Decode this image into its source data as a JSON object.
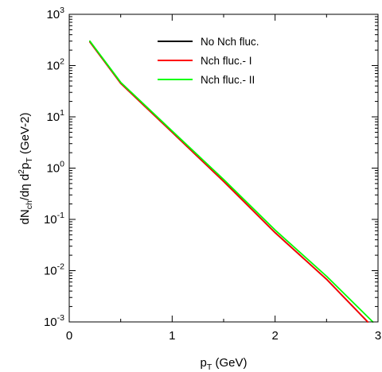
{
  "chart_data": {
    "type": "line",
    "title": "",
    "xlabel": {
      "main": "p",
      "sub": "T",
      "rest": " (GeV)"
    },
    "ylabel": {
      "p1": "dN",
      "s1": "ch",
      "p2": "/dη d",
      "sup": "2",
      "p3": "p",
      "s2": "T",
      "p4": " (GeV-2)"
    },
    "x_scale": "linear",
    "y_scale": "log",
    "xlim": [
      0,
      3
    ],
    "ylim": [
      0.001,
      1000
    ],
    "x_ticks": [
      {
        "value": 0,
        "label": "0"
      },
      {
        "value": 1,
        "label": "1"
      },
      {
        "value": 2,
        "label": "2"
      },
      {
        "value": 3,
        "label": "3"
      }
    ],
    "y_ticks": [
      {
        "value": 0.001,
        "base": "10",
        "exp": "-3"
      },
      {
        "value": 0.01,
        "base": "10",
        "exp": "-2"
      },
      {
        "value": 0.1,
        "base": "10",
        "exp": "-1"
      },
      {
        "value": 1,
        "base": "10",
        "exp": "0"
      },
      {
        "value": 10,
        "base": "10",
        "exp": "1"
      },
      {
        "value": 100,
        "base": "10",
        "exp": "2"
      },
      {
        "value": 1000,
        "base": "10",
        "exp": "3"
      }
    ],
    "grid": false,
    "legend_position": "top-right",
    "series": [
      {
        "name": "No Nch fluc.",
        "color": "#000000",
        "x": [
          0.2,
          0.5,
          1.0,
          1.5,
          2.0,
          2.5,
          2.9
        ],
        "y": [
          290,
          45,
          5.0,
          0.55,
          0.055,
          0.0068,
          0.001
        ]
      },
      {
        "name": "Nch fluc.- I",
        "color": "#ff0000",
        "x": [
          0.2,
          0.5,
          1.0,
          1.5,
          2.0,
          2.5,
          2.9
        ],
        "y": [
          290,
          45,
          5.0,
          0.55,
          0.055,
          0.0068,
          0.001
        ]
      },
      {
        "name": "Nch fluc.- II",
        "color": "#00ff00",
        "x": [
          0.2,
          0.5,
          1.0,
          1.5,
          2.0,
          2.5,
          2.95
        ],
        "y": [
          300,
          47,
          5.3,
          0.6,
          0.062,
          0.0078,
          0.001
        ]
      }
    ]
  }
}
